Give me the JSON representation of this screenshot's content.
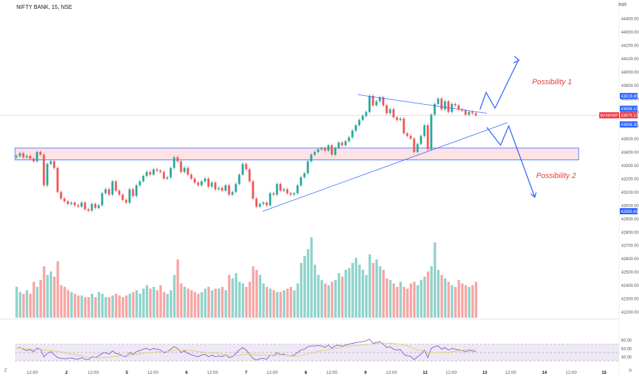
{
  "header": {
    "title": "NIFTY BANK, 15, NSE",
    "currency": "INR"
  },
  "corners": {
    "left": "Z",
    "right": "A"
  },
  "price_axis": {
    "ticks": [
      "44400.00",
      "44300.00",
      "44200.00",
      "44100.00",
      "44000.00",
      "43900.00",
      "43800.00",
      "43700.00",
      "43600.00",
      "43500.00",
      "43400.00",
      "43300.00",
      "43200.00",
      "43100.00",
      "43000.00",
      "42900.00",
      "42800.00",
      "42700.00",
      "42600.00",
      "42500.00",
      "42400.00",
      "42300.00",
      "42200.00"
    ],
    "labels": [
      {
        "text": "43819.80",
        "value": 43819.8,
        "color": "#2962ff"
      },
      {
        "text": "43698.10",
        "value": 43698.1,
        "color": "#2962ff"
      },
      {
        "text": "BANKNIFTY",
        "value": 43675.1,
        "color": "#f23645"
      },
      {
        "text": "43675.10",
        "value": 43675.1,
        "color": "#f23645"
      },
      {
        "text": "43606.30",
        "value": 43606.3,
        "color": "#2962ff"
      },
      {
        "text": "42955.65",
        "value": 42955.65,
        "color": "#2962ff"
      }
    ]
  },
  "rsi_axis": {
    "ticks": [
      "80.00",
      "60.00",
      "40.00"
    ]
  },
  "time_axis": {
    "ticks": [
      "12:00",
      "2",
      "12:00",
      "5",
      "12:00",
      "6",
      "12:00",
      "7",
      "12:00",
      "8",
      "12:00",
      "9",
      "12:00",
      "12",
      "12:00",
      "13",
      "12:00",
      "14",
      "12:00",
      "15"
    ]
  },
  "annotations": {
    "possibility_1": "Possibility 1",
    "possibility_2": "Possibility 2"
  },
  "colors": {
    "up": "#26a69a",
    "down": "#ef5350",
    "vol_up": "#8fd3cb",
    "vol_down": "#f7a6a4",
    "trend": "#2962ff",
    "zone_fill": "#fde2e6",
    "rsi_line": "#7e57c2",
    "rsi_ma": "#e6cf5a",
    "rsi_band": "#ede7f6"
  },
  "chart_data": [
    {
      "type": "candlestick",
      "title": "NIFTY BANK, 15, NSE",
      "x_unit": "15-minute bars",
      "ylim": [
        42200,
        44450
      ],
      "key_levels": {
        "zone_top": 43430,
        "zone_bottom": 43340,
        "last_price": 43675.1,
        "previous_close": 43698.1
      },
      "projection": "scenarios: breakout up to ~44050 (Possibility 1) or breakdown to ~43000 (Possibility 2)",
      "close": [
        43370,
        43390,
        43360,
        43370,
        43350,
        43330,
        43400,
        43380,
        43150,
        43310,
        43330,
        43280,
        43100,
        43050,
        43030,
        43010,
        43020,
        43000,
        42990,
        43020,
        42970,
        42960,
        43010,
        42980,
        43000,
        43090,
        43120,
        43080,
        43180,
        43110,
        43080,
        43040,
        43020,
        43120,
        43070,
        43150,
        43180,
        43220,
        43250,
        43230,
        43270,
        43260,
        43250,
        43200,
        43210,
        43280,
        43360,
        43330,
        43250,
        43280,
        43230,
        43200,
        43170,
        43150,
        43180,
        43200,
        43140,
        43170,
        43120,
        43130,
        43110,
        43150,
        43080,
        43100,
        43160,
        43230,
        43310,
        43270,
        43180,
        43050,
        42990,
        43010,
        43020,
        43000,
        43090,
        43080,
        43160,
        43110,
        43120,
        43090,
        43080,
        43090,
        43150,
        43210,
        43240,
        43330,
        43380,
        43400,
        43420,
        43430,
        43410,
        43450,
        43380,
        43430,
        43470,
        43450,
        43480,
        43510,
        43560,
        43600,
        43640,
        43670,
        43700,
        43820,
        43750,
        43780,
        43810,
        43750,
        43690,
        43720,
        43660,
        43640,
        43650,
        43540,
        43520,
        43500,
        43400,
        43460,
        43520,
        43600,
        43420,
        43680,
        43760,
        43800,
        43720,
        43780,
        43700,
        43760,
        43750,
        43720,
        43710,
        43680,
        43700,
        43690,
        43675
      ],
      "volume": [
        18,
        15,
        14,
        16,
        14,
        21,
        18,
        22,
        30,
        25,
        27,
        24,
        33,
        19,
        18,
        16,
        15,
        14,
        13,
        13,
        12,
        12,
        14,
        12,
        15,
        14,
        12,
        12,
        13,
        14,
        13,
        12,
        13,
        14,
        15,
        16,
        14,
        17,
        19,
        17,
        18,
        16,
        19,
        15,
        14,
        16,
        25,
        34,
        20,
        18,
        17,
        16,
        15,
        14,
        15,
        17,
        18,
        16,
        17,
        17,
        18,
        16,
        25,
        23,
        26,
        21,
        20,
        18,
        21,
        30,
        28,
        25,
        20,
        18,
        17,
        16,
        15,
        15,
        16,
        17,
        18,
        16,
        20,
        32,
        36,
        40,
        47,
        31,
        25,
        22,
        20,
        19,
        21,
        22,
        26,
        24,
        28,
        29,
        32,
        35,
        31,
        28,
        25,
        37,
        32,
        34,
        30,
        28,
        23,
        22,
        20,
        18,
        21,
        18,
        17,
        20,
        21,
        19,
        22,
        24,
        27,
        30,
        44,
        28,
        25,
        23,
        21,
        19,
        18,
        22,
        20,
        19,
        18,
        19,
        21
      ],
      "ylabel_right": "INR"
    },
    {
      "type": "line",
      "title": "",
      "series": [
        {
          "name": "",
          "values": [
            60,
            62,
            58,
            55,
            57,
            52,
            60,
            58,
            40,
            48,
            52,
            45,
            38,
            36,
            35,
            36,
            37,
            35,
            34,
            38,
            34,
            33,
            40,
            38,
            42,
            48,
            50,
            46,
            54,
            48,
            46,
            42,
            40,
            50,
            46,
            52,
            55,
            58,
            60,
            56,
            60,
            58,
            56,
            50,
            52,
            58,
            64,
            60,
            50,
            54,
            48,
            45,
            42,
            40,
            44,
            46,
            40,
            44,
            40,
            42,
            40,
            45,
            38,
            40,
            48,
            56,
            62,
            56,
            46,
            36,
            32,
            35,
            36,
            34,
            44,
            42,
            50,
            45,
            46,
            43,
            42,
            44,
            50,
            56,
            58,
            64,
            66,
            66,
            67,
            66,
            62,
            68,
            60,
            66,
            68,
            65,
            68,
            70,
            72,
            74,
            75,
            76,
            78,
            82,
            72,
            74,
            76,
            70,
            62,
            64,
            58,
            56,
            57,
            46,
            42,
            41,
            33,
            40,
            46,
            56,
            38,
            60,
            64,
            66,
            58,
            62,
            56,
            60,
            58,
            56,
            55,
            52,
            55,
            54,
            52
          ]
        }
      ],
      "ylim": [
        30,
        85
      ],
      "levels": [
        70,
        50,
        30
      ],
      "axis_ticks": [
        80,
        60,
        40
      ]
    }
  ]
}
